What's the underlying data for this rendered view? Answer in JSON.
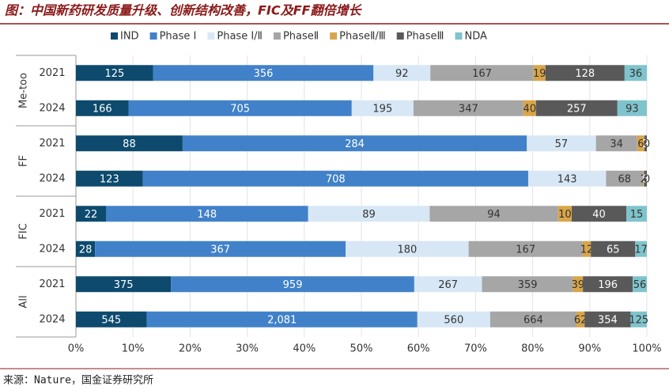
{
  "chart_data": {
    "type": "stacked-bar-100",
    "title": "图：中国新药研发质量升级、创新结构改善，FIC及FF翻倍增长",
    "source": "来源：Nature，国金证券研究所",
    "groups": [
      "Me-too",
      "FF",
      "FIC",
      "All"
    ],
    "categories": [
      "2021",
      "2024",
      "2021",
      "2024",
      "2021",
      "2024",
      "2021",
      "2024"
    ],
    "xlim": [
      0,
      100
    ],
    "xticks": [
      {
        "value": 0,
        "label": "0%"
      },
      {
        "value": 10,
        "label": "10%"
      },
      {
        "value": 20,
        "label": "20%"
      },
      {
        "value": 30,
        "label": "30%"
      },
      {
        "value": 40,
        "label": "40%"
      },
      {
        "value": 50,
        "label": "50%"
      },
      {
        "value": 60,
        "label": "60%"
      },
      {
        "value": 70,
        "label": "70%"
      },
      {
        "value": 80,
        "label": "80%"
      },
      {
        "value": 90,
        "label": "90%"
      },
      {
        "value": 100,
        "label": "100%"
      }
    ],
    "series": [
      {
        "name": "IND",
        "color": "#0d4a6e",
        "values": [
          125,
          166,
          88,
          123,
          22,
          28,
          375,
          545
        ]
      },
      {
        "name": "Phase Ⅰ",
        "color": "#4181c9",
        "values": [
          356,
          705,
          284,
          708,
          148,
          367,
          959,
          2081
        ],
        "value_labels": [
          "356",
          "705",
          "284",
          "708",
          "148",
          "367",
          "959",
          "2,081"
        ]
      },
      {
        "name": "Phase Ⅰ/Ⅱ",
        "color": "#d7e7f6",
        "values": [
          92,
          195,
          57,
          143,
          89,
          180,
          267,
          560
        ]
      },
      {
        "name": "PhaseⅡ",
        "color": "#a6a6a6",
        "values": [
          167,
          347,
          34,
          68,
          94,
          167,
          359,
          664
        ]
      },
      {
        "name": "PhaseⅡ/Ⅲ",
        "color": "#d9a54a",
        "values": [
          19,
          40,
          6,
          2,
          10,
          12,
          39,
          62
        ]
      },
      {
        "name": "PhaseⅢ",
        "color": "#595959",
        "values": [
          128,
          257,
          2,
          5,
          40,
          65,
          196,
          354
        ]
      },
      {
        "name": "NDA",
        "color": "#7fc4cc",
        "values": [
          36,
          93,
          0,
          0,
          15,
          17,
          56,
          125
        ]
      }
    ]
  }
}
